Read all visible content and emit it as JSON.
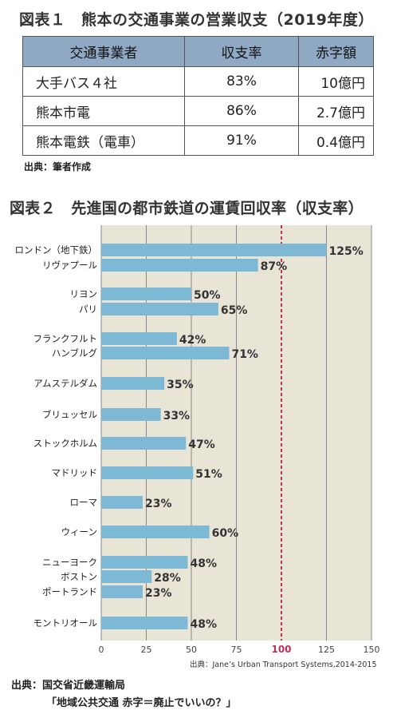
{
  "figure1": {
    "title": "図表１　熊本の交通事業の営業収支（2019年度）",
    "headers": [
      "交通事業者",
      "収支率",
      "赤字額"
    ],
    "rows": [
      [
        "大手バス４社",
        "83%",
        "10億円"
      ],
      [
        "熊本市電",
        "86%",
        "2.7億円"
      ],
      [
        "熊本電鉄（電車）",
        "91%",
        "0.4億円"
      ]
    ],
    "source": "出典：筆者作成"
  },
  "figure2": {
    "title": "図表２　先進国の都市鉄道の運賃回収率（収支率）",
    "axis_source": "出典：Jane’s Urban Transport Systems,2014-2015",
    "source_line1": "出典：国交省近畿運輸局",
    "source_line2": "「地域公共交通 赤字＝廃止でいいの？」"
  },
  "chart_data": {
    "type": "bar",
    "orientation": "horizontal",
    "categories": [
      "ロンドン（地下鉄）",
      "リヴァプール",
      "リヨン",
      "パリ",
      "フランクフルト",
      "ハンブルグ",
      "アムステルダム",
      "ブリュッセル",
      "ストックホルム",
      "マドリッド",
      "ローマ",
      "ウィーン",
      "ニューヨーク",
      "ボストン",
      "ポートランド",
      "モントリオール"
    ],
    "values": [
      125,
      87,
      50,
      65,
      42,
      71,
      35,
      33,
      47,
      51,
      23,
      60,
      48,
      28,
      23,
      48
    ],
    "value_labels": [
      "125%",
      "87%",
      "50%",
      "65%",
      "42%",
      "71%",
      "35%",
      "33%",
      "47%",
      "51%",
      "23%",
      "60%",
      "48%",
      "28%",
      "23%",
      "48%"
    ],
    "xlim": [
      0,
      150
    ],
    "xticks": [
      "0",
      "25",
      "50",
      "75",
      "100",
      "125",
      "150"
    ],
    "reference_line": 100,
    "colors": {
      "bar": "#7db9d4",
      "background": "#e8e4d6",
      "reference": "#c0305a",
      "grid": "#888888"
    }
  }
}
